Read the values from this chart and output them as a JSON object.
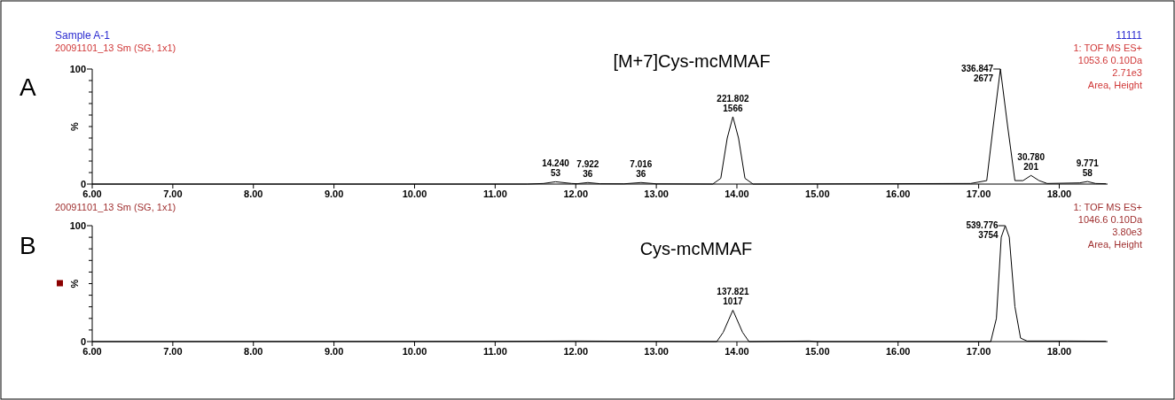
{
  "chart_data": [
    {
      "type": "line",
      "title": "[M+7]Cys-mcMMAF",
      "ylabel": "%",
      "xlim": [
        6,
        18.6
      ],
      "ylim": [
        0,
        100
      ],
      "xticks": [
        {
          "value": 6,
          "label": "6.00"
        },
        {
          "value": 7,
          "label": "7.00"
        },
        {
          "value": 8,
          "label": "8.00"
        },
        {
          "value": 9,
          "label": "9.00"
        },
        {
          "value": 10,
          "label": "10.00"
        },
        {
          "value": 11,
          "label": "11.00"
        },
        {
          "value": 12,
          "label": "12.00"
        },
        {
          "value": 13,
          "label": "13.00"
        },
        {
          "value": 14,
          "label": "14.00"
        },
        {
          "value": 15,
          "label": "15.00"
        },
        {
          "value": 16,
          "label": "16.00"
        },
        {
          "value": 17,
          "label": "17.00"
        },
        {
          "value": 18,
          "label": "18.00"
        }
      ],
      "yticks": [
        {
          "value": 0,
          "label": "0"
        },
        {
          "value": 10,
          "label": null
        },
        {
          "value": 20,
          "label": null
        },
        {
          "value": 30,
          "label": null
        },
        {
          "value": 40,
          "label": null
        },
        {
          "value": 50,
          "label": null
        },
        {
          "value": 60,
          "label": null
        },
        {
          "value": 70,
          "label": null
        },
        {
          "value": 80,
          "label": null
        },
        {
          "value": 90,
          "label": null
        },
        {
          "value": 100,
          "label": "100"
        }
      ],
      "grid": false,
      "marker": "none",
      "line_style": "solid",
      "series": [
        {
          "color": "#000000",
          "x": [
            6,
            11.4,
            11.6,
            11.75,
            11.95,
            12.02,
            12.15,
            12.3,
            12.6,
            12.81,
            13.0,
            13.7,
            13.8,
            13.88,
            13.95,
            14.02,
            14.1,
            14.2,
            16.9,
            17.1,
            17.18,
            17.27,
            17.36,
            17.45,
            17.55,
            17.65,
            17.75,
            17.85,
            18.25,
            18.35,
            18.45,
            18.58
          ],
          "values": [
            0,
            0,
            0.5,
            2,
            0.5,
            0.3,
            1.3,
            0.3,
            0.2,
            1.3,
            0.2,
            0,
            5,
            40,
            58.5,
            40,
            5,
            0,
            0.5,
            3,
            50,
            100,
            50,
            3,
            3,
            7.5,
            3,
            0.5,
            1,
            2.2,
            0.5,
            0.3
          ]
        }
      ],
      "annotations": [
        "Sample A-1",
        "20091101_13 Sm (SG, 1x1)",
        "A",
        "11111",
        "1: TOF MS ES+",
        "1053.6 0.10Da",
        "2.71e3",
        "Area, Height",
        {
          "text": "14.240\n53",
          "x": 11.75,
          "y": 2
        },
        {
          "text": "7.922\n36",
          "x": 12.15,
          "y": 1.3
        },
        {
          "text": "7.016\n36",
          "x": 12.81,
          "y": 1.3
        },
        {
          "text": "221.802\n1566",
          "x": 13.95,
          "y": 58.5
        },
        {
          "text": "336.847\n2677",
          "x": 17.27,
          "y": 100
        },
        {
          "text": "30.780\n201",
          "x": 17.65,
          "y": 7.5
        },
        {
          "text": "9.771\n58",
          "x": 18.35,
          "y": 2.2
        }
      ]
    },
    {
      "type": "line",
      "title": "Cys-mcMMAF",
      "ylabel": "%",
      "xlim": [
        6,
        18.6
      ],
      "ylim": [
        0,
        100
      ],
      "xticks": [
        {
          "value": 6,
          "label": "6.00"
        },
        {
          "value": 7,
          "label": "7.00"
        },
        {
          "value": 8,
          "label": "8.00"
        },
        {
          "value": 9,
          "label": "9.00"
        },
        {
          "value": 10,
          "label": "10.00"
        },
        {
          "value": 11,
          "label": "11.00"
        },
        {
          "value": 12,
          "label": "12.00"
        },
        {
          "value": 13,
          "label": "13.00"
        },
        {
          "value": 14,
          "label": "14.00"
        },
        {
          "value": 15,
          "label": "15.00"
        },
        {
          "value": 16,
          "label": "16.00"
        },
        {
          "value": 17,
          "label": "17.00"
        },
        {
          "value": 18,
          "label": "18.00"
        }
      ],
      "yticks": [
        {
          "value": 0,
          "label": "0"
        },
        {
          "value": 10,
          "label": null
        },
        {
          "value": 20,
          "label": null
        },
        {
          "value": 30,
          "label": null
        },
        {
          "value": 40,
          "label": null
        },
        {
          "value": 50,
          "label": null
        },
        {
          "value": 60,
          "label": null
        },
        {
          "value": 70,
          "label": null
        },
        {
          "value": 80,
          "label": null
        },
        {
          "value": 90,
          "label": null
        },
        {
          "value": 100,
          "label": "100"
        }
      ],
      "grid": false,
      "marker": "none",
      "line_style": "solid",
      "series": [
        {
          "color": "#000000",
          "x": [
            6,
            11,
            12,
            13.75,
            13.83,
            13.95,
            14.07,
            14.15,
            14.9,
            15,
            17.15,
            17.22,
            17.28,
            17.33,
            17.38,
            17.45,
            17.52,
            17.6,
            18.1,
            18.58
          ],
          "values": [
            0,
            0.2,
            0.5,
            0,
            8,
            27.1,
            8,
            0,
            0.5,
            0,
            0,
            20,
            90,
            100,
            90,
            30,
            3,
            0.5,
            0.5,
            0.3
          ]
        }
      ],
      "annotations": [
        "20091101_13 Sm (SG, 1x1)",
        "B",
        "1: TOF MS ES+",
        "1046.6 0.10Da",
        "3.80e3",
        "Area, Height",
        {
          "text": "137.821\n1017",
          "x": 13.95,
          "y": 27.1
        },
        {
          "text": "539.776\n3754",
          "x": 17.33,
          "y": 100
        }
      ]
    }
  ]
}
